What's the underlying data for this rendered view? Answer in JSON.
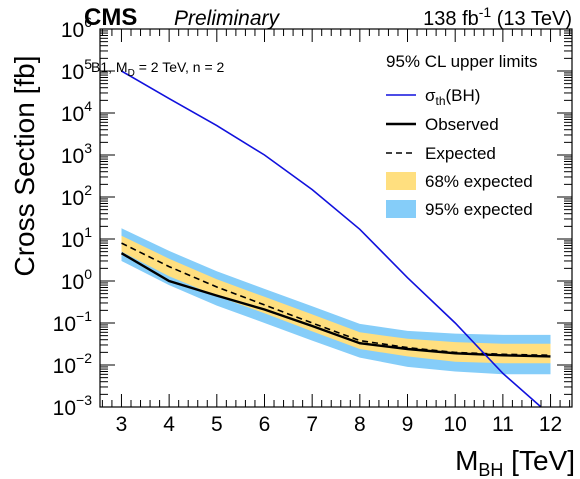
{
  "header": {
    "experiment": "CMS",
    "status": "Preliminary",
    "lumi": {
      "value": "138 fb",
      "exponent": "-1",
      "energy": " (13 TeV)"
    }
  },
  "benchmark": {
    "prefix": "B1, M",
    "sub": "D",
    "suffix": " = 2 TeV, n = 2"
  },
  "legend_title": "95% CL upper limits",
  "legend_items": [
    {
      "symbol": "σ",
      "sub": "th",
      "text": "(BH)",
      "style": "theory",
      "color": "#1111dd"
    },
    {
      "text": "Observed",
      "style": "observed",
      "color": "#000000"
    },
    {
      "text": "Expected",
      "style": "expected",
      "color": "#000000"
    },
    {
      "text": "68% expected",
      "style": "band68",
      "color": "#ffdf7f"
    },
    {
      "text": "95% expected",
      "style": "band95",
      "color": "#85cdf9"
    }
  ],
  "chart_data": {
    "type": "line",
    "title": "",
    "xlabel": {
      "main": "M",
      "sub": "BH",
      "unit": " [TeV]"
    },
    "ylabel": "Cross Section [fb]",
    "xlim": [
      2.55,
      12.45
    ],
    "ylim_log10": [
      -3,
      6
    ],
    "xticks": [
      3,
      4,
      5,
      6,
      7,
      8,
      9,
      10,
      11,
      12
    ],
    "xtick_labels": [
      "3",
      "4",
      "5",
      "6",
      "7",
      "8",
      "9",
      "10",
      "11",
      "12"
    ],
    "yticks_log10": [
      -3,
      -2,
      -1,
      0,
      1,
      2,
      3,
      4,
      5,
      6
    ],
    "ytick_exponents": [
      "−3",
      "−2",
      "−1",
      "0",
      "1",
      "2",
      "3",
      "4",
      "5",
      "6"
    ],
    "ytick_base": "10",
    "grid": false,
    "legend_position": "top-right",
    "x": [
      3,
      4,
      5,
      6,
      7,
      8,
      9,
      10,
      11,
      12
    ],
    "series": [
      {
        "name": "σth(BH)",
        "style": "theory",
        "x": [
          3,
          4,
          5,
          6,
          7,
          8,
          9,
          10,
          11,
          11.8
        ],
        "values": [
          100000,
          22000,
          5000,
          1000,
          150,
          17,
          1.2,
          0.1,
          0.0063,
          0.001
        ]
      },
      {
        "name": "Observed",
        "style": "observed",
        "values": [
          4.6,
          1.0,
          0.45,
          0.21,
          0.085,
          0.033,
          0.024,
          0.019,
          0.017,
          0.016
        ]
      },
      {
        "name": "Expected",
        "style": "expected",
        "values": [
          8.0,
          2.2,
          0.72,
          0.27,
          0.1,
          0.038,
          0.026,
          0.02,
          0.018,
          0.017
        ]
      },
      {
        "name": "68% expected",
        "style": "band68",
        "lower": [
          5.0,
          1.3,
          0.44,
          0.17,
          0.063,
          0.024,
          0.016,
          0.012,
          0.011,
          0.011
        ],
        "upper": [
          12.0,
          3.4,
          1.1,
          0.42,
          0.16,
          0.06,
          0.042,
          0.035,
          0.032,
          0.032
        ]
      },
      {
        "name": "95% expected",
        "style": "band95",
        "lower": [
          3.0,
          0.8,
          0.26,
          0.1,
          0.038,
          0.015,
          0.009,
          0.007,
          0.006,
          0.006
        ],
        "upper": [
          18.0,
          5.2,
          1.7,
          0.65,
          0.25,
          0.095,
          0.065,
          0.056,
          0.052,
          0.052
        ]
      }
    ]
  }
}
